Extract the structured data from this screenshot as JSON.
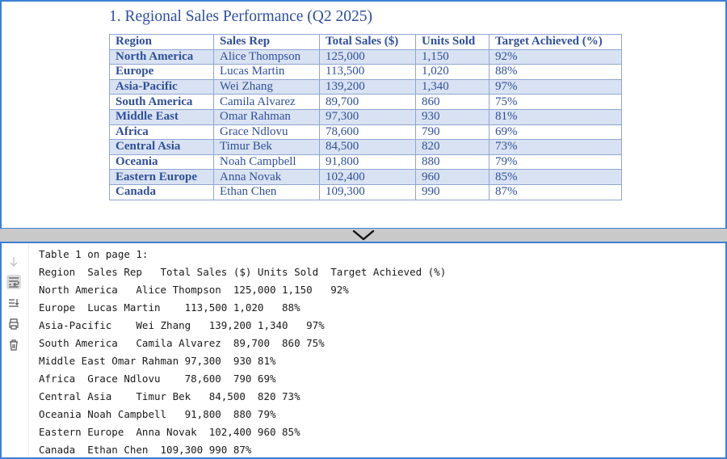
{
  "document": {
    "title": "1. Regional Sales Performance (Q2 2025)",
    "columns": [
      "Region",
      "Sales Rep",
      "Total Sales ($)",
      "Units Sold",
      "Target Achieved (%)"
    ],
    "rows": [
      [
        "North America",
        "Alice Thompson",
        "125,000",
        "1,150",
        "92%"
      ],
      [
        "Europe",
        "Lucas Martin",
        "113,500",
        "1,020",
        "88%"
      ],
      [
        "Asia-Pacific",
        "Wei Zhang",
        "139,200",
        "1,340",
        "97%"
      ],
      [
        "South America",
        "Camila Alvarez",
        "89,700",
        "860",
        "75%"
      ],
      [
        "Middle East",
        "Omar Rahman",
        "97,300",
        "930",
        "81%"
      ],
      [
        "Africa",
        "Grace Ndlovu",
        "78,600",
        "790",
        "69%"
      ],
      [
        "Central Asia",
        "Timur Bek",
        "84,500",
        "820",
        "73%"
      ],
      [
        "Oceania",
        "Noah Campbell",
        "91,800",
        "880",
        "79%"
      ],
      [
        "Eastern Europe",
        "Anna Novak",
        "102,400",
        "960",
        "85%"
      ],
      [
        "Canada",
        "Ethan Chen",
        "109,300",
        "990",
        "87%"
      ]
    ]
  },
  "console": {
    "toolbar_icons": [
      "arrow-down-icon",
      "soft-wrap-icon",
      "scroll-to-end-icon",
      "print-icon",
      "trash-icon"
    ],
    "lines": [
      "Table 1 on page 1:",
      "Region  Sales Rep   Total Sales ($) Units Sold  Target Achieved (%)",
      "North America   Alice Thompson  125,000 1,150   92%",
      "Europe  Lucas Martin    113,500 1,020   88%",
      "Asia-Pacific    Wei Zhang   139,200 1,340   97%",
      "South America   Camila Alvarez  89,700  860 75%",
      "Middle East Omar Rahman 97,300  930 81%",
      "Africa  Grace Ndlovu    78,600  790 69%",
      "Central Asia    Timur Bek   84,500  820 73%",
      "Oceania Noah Campbell   91,800  880 79%",
      "Eastern Europe  Anna Novak  102,400 960 85%",
      "Canada  Ethan Chen  109,300 990 87%"
    ]
  },
  "colors": {
    "accent_border": "#3d7fd6",
    "table_text": "#2f4f9a",
    "table_band": "#d9e2f2",
    "table_border": "#8ea6d2"
  }
}
